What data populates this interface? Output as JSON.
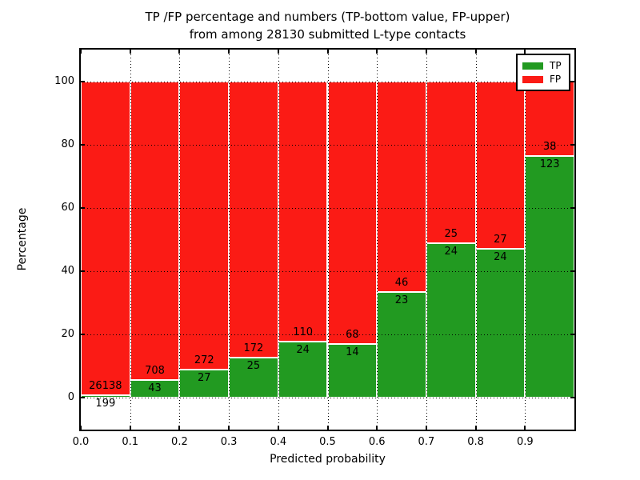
{
  "figure": {
    "title_line1": "TP /FP percentage and numbers (TP-bottom value, FP-upper)",
    "title_line2": "from among 28130 submitted L-type contacts",
    "xlabel": "Predicted probability",
    "ylabel": "Percentage"
  },
  "legend": {
    "items": [
      {
        "label": "TP",
        "color": "#229a21"
      },
      {
        "label": "FP",
        "color": "#fb1b15"
      }
    ]
  },
  "chart_data": {
    "type": "bar",
    "stacked": true,
    "title": "TP /FP percentage and numbers (TP-bottom value, FP-upper) from among 28130 submitted L-type contacts",
    "xlabel": "Predicted probability",
    "ylabel": "Percentage",
    "total_submitted": 28130,
    "bin_starts": [
      0.0,
      0.1,
      0.2,
      0.3,
      0.4,
      0.5,
      0.6,
      0.7,
      0.8,
      0.9
    ],
    "bin_width": 0.1,
    "x_tick_values": [
      0.0,
      0.1,
      0.2,
      0.3,
      0.4,
      0.5,
      0.6,
      0.7,
      0.8,
      0.9
    ],
    "x_tick_labels": [
      "0.0",
      "0.1",
      "0.2",
      "0.3",
      "0.4",
      "0.5",
      "0.6",
      "0.7",
      "0.8",
      "0.9"
    ],
    "y_ticks": [
      0,
      20,
      40,
      60,
      80,
      100
    ],
    "y_tick_labels": [
      "0",
      "20",
      "40",
      "60",
      "80",
      "100"
    ],
    "xlim": [
      0.0,
      1.0
    ],
    "ylim": [
      -10,
      110
    ],
    "grid": "dotted",
    "grid_above_bars": true,
    "legend_position": "upper right",
    "series": [
      {
        "name": "TP",
        "color": "#229a21",
        "counts": [
          199,
          43,
          27,
          25,
          24,
          14,
          23,
          24,
          24,
          123
        ]
      },
      {
        "name": "FP",
        "color": "#fb1b15",
        "counts": [
          26138,
          708,
          272,
          172,
          110,
          68,
          46,
          25,
          27,
          38
        ]
      }
    ],
    "tp_percent": [
      0.76,
      5.73,
      9.03,
      12.69,
      17.91,
      17.07,
      33.33,
      48.98,
      47.06,
      76.4
    ]
  }
}
